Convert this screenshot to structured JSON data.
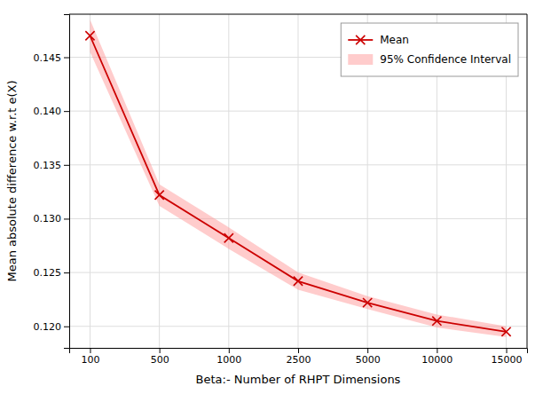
{
  "chart_data": {
    "type": "line",
    "xlabel": "Beta:- Number of RHPT Dimensions",
    "ylabel": "Mean absolute difference w.r.t e(X)",
    "categories": [
      "100",
      "500",
      "1000",
      "2500",
      "5000",
      "10000",
      "15000"
    ],
    "series": [
      {
        "name": "Mean",
        "type": "line",
        "color": "#cc0000",
        "marker": "x",
        "values": [
          0.147,
          0.1322,
          0.1282,
          0.1242,
          0.1222,
          0.1205,
          0.1195
        ]
      },
      {
        "name": "95% Confidence Interval",
        "type": "band",
        "color": "#ff9999",
        "ci_lower": [
          0.1455,
          0.1312,
          0.1272,
          0.1234,
          0.1216,
          0.1199,
          0.119
        ],
        "ci_upper": [
          0.1485,
          0.1332,
          0.1292,
          0.125,
          0.1228,
          0.1211,
          0.12
        ]
      }
    ],
    "ylim": [
      0.118,
      0.149
    ],
    "yticks": [
      {
        "value": 0.12,
        "label": "0.120"
      },
      0.125,
      {
        "value": 0.13,
        "label": "0.130"
      },
      0.135,
      {
        "value": 0.14,
        "label": "0.140"
      },
      0.145
    ],
    "grid": true,
    "legend": "upper right"
  }
}
